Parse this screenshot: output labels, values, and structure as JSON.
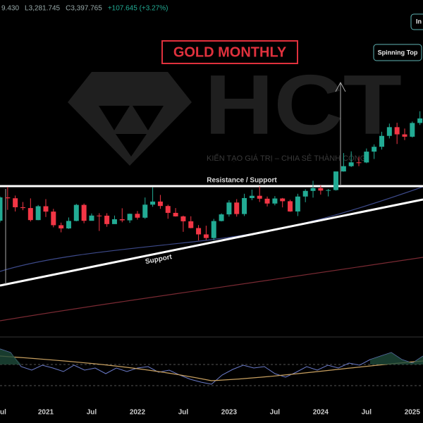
{
  "header": {
    "items": [
      "9.430",
      "L3,281.745",
      "C3,397.765",
      "+107.645 (+3.27%)"
    ]
  },
  "watermark": {
    "brand": "HCT",
    "tagline": "KIẾN TẠO GIÁ TRỊ – CHIA SẺ THÀNH CÔNG"
  },
  "chart_data": {
    "type": "candlestick",
    "title": "GOLD MONTHLY",
    "annotations": {
      "resistance": "Resistance / Support",
      "support": "Support",
      "pattern": "Spinning Top",
      "corner": "In"
    },
    "categories": [
      "ul",
      null,
      null,
      null,
      null,
      null,
      "2021",
      null,
      null,
      null,
      null,
      null,
      "Jul",
      null,
      null,
      null,
      null,
      null,
      "2022",
      null,
      null,
      null,
      null,
      null,
      "Jul",
      null,
      null,
      null,
      null,
      null,
      "2023",
      null,
      null,
      null,
      null,
      null,
      "Jul",
      null,
      null,
      null,
      null,
      null,
      "2024",
      null,
      null,
      null,
      null,
      null,
      "Jul",
      null,
      null,
      null,
      null,
      null,
      "2025",
      null
    ],
    "open": [
      1771,
      1975,
      1967,
      1886,
      1879,
      1776,
      1895,
      1848,
      1734,
      1708,
      1769,
      1907,
      1770,
      1814,
      1813,
      1743,
      1783,
      1774,
      1829,
      1796,
      1909,
      1937,
      1897,
      1837,
      1807,
      1766,
      1711,
      1661,
      1633,
      1768,
      1824,
      1928,
      1827,
      1969,
      1990,
      1963,
      1919,
      1965,
      1940,
      1849,
      1983,
      2036,
      2063,
      2039,
      2044,
      2230,
      2286,
      2327,
      2326,
      2447,
      2503,
      2634,
      2744,
      2653,
      2624,
      2798
    ],
    "high": [
      1984,
      2075,
      1992,
      1933,
      1966,
      1906,
      1959,
      1872,
      1755,
      1798,
      1916,
      1919,
      1832,
      1834,
      1834,
      1814,
      1877,
      1831,
      1853,
      1974,
      2070,
      1998,
      1909,
      1879,
      1814,
      1808,
      1735,
      1730,
      1786,
      1833,
      1949,
      1959,
      2009,
      2048,
      2079,
      1983,
      1987,
      1970,
      1953,
      2009,
      2052,
      2135,
      2088,
      2055,
      2222,
      2431,
      2450,
      2387,
      2483,
      2531,
      2685,
      2790,
      2801,
      2726,
      2817,
      2956
    ],
    "low": [
      1757,
      1863,
      1849,
      1860,
      1764,
      1775,
      1802,
      1717,
      1677,
      1704,
      1766,
      1750,
      1790,
      1688,
      1721,
      1746,
      1758,
      1753,
      1780,
      1786,
      1890,
      1872,
      1787,
      1805,
      1681,
      1709,
      1615,
      1618,
      1616,
      1765,
      1805,
      1805,
      1810,
      1949,
      1933,
      1893,
      1903,
      1885,
      1846,
      1810,
      1931,
      1973,
      2001,
      1984,
      2039,
      2228,
      2277,
      2286,
      2318,
      2364,
      2471,
      2603,
      2536,
      2583,
      2614,
      2772
    ],
    "close": [
      1975,
      1967,
      1886,
      1879,
      1776,
      1895,
      1848,
      1734,
      1708,
      1769,
      1907,
      1770,
      1814,
      1813,
      1743,
      1783,
      1774,
      1829,
      1796,
      1909,
      1937,
      1897,
      1837,
      1807,
      1766,
      1711,
      1661,
      1633,
      1768,
      1824,
      1928,
      1827,
      1969,
      1990,
      1963,
      1919,
      1965,
      1940,
      1849,
      1983,
      2036,
      2063,
      2039,
      2044,
      2230,
      2286,
      2327,
      2326,
      2447,
      2503,
      2634,
      2744,
      2653,
      2624,
      2798,
      2858
    ],
    "up_color": "#22ab94",
    "down_color": "#f23645",
    "ylim": [
      1055,
      4658
    ],
    "log_scale": true
  }
}
